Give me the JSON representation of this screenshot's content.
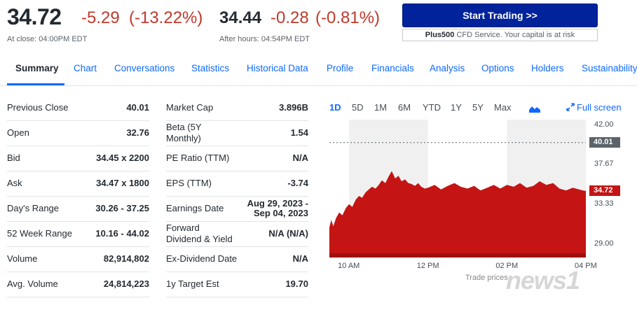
{
  "header": {
    "price": "34.72",
    "change": "-5.29",
    "change_pct": "(-13.22%)",
    "close_label": "At close: 04:00PM EDT",
    "ah_price": "34.44",
    "ah_change": "-0.28",
    "ah_change_pct": "(-0.81%)",
    "ah_label": "After hours: 04:54PM EDT",
    "cta_label": "Start Trading >>",
    "cfd_brand": "Plus500",
    "cfd_text": " CFD Service. Your capital is at risk"
  },
  "tabs": [
    "Summary",
    "Chart",
    "Conversations",
    "Statistics",
    "Historical Data",
    "Profile",
    "Financials",
    "Analysis",
    "Options",
    "Holders",
    "Sustainability"
  ],
  "left_stats": [
    {
      "label": "Previous Close",
      "value": "40.01"
    },
    {
      "label": "Open",
      "value": "32.76"
    },
    {
      "label": "Bid",
      "value": "34.45 x 2200"
    },
    {
      "label": "Ask",
      "value": "34.47 x 1800"
    },
    {
      "label": "Day's Range",
      "value": "30.26 - 37.25"
    },
    {
      "label": "52 Week Range",
      "value": "10.16 - 44.02"
    },
    {
      "label": "Volume",
      "value": "82,914,802"
    },
    {
      "label": "Avg. Volume",
      "value": "24,814,223"
    }
  ],
  "right_stats": [
    {
      "label": "Market Cap",
      "value": "3.896B"
    },
    {
      "label": "Beta (5Y\nMonthly)",
      "value": "1.54"
    },
    {
      "label": "PE Ratio (TTM)",
      "value": "N/A"
    },
    {
      "label": "EPS (TTM)",
      "value": "-3.74"
    },
    {
      "label": "Earnings Date",
      "value": "Aug 29, 2023 -\nSep 04, 2023"
    },
    {
      "label": "Forward\nDividend & Yield",
      "value": "N/A (N/A)"
    },
    {
      "label": "Ex-Dividend Date",
      "value": "N/A"
    },
    {
      "label": "1y Target Est",
      "value": "19.70"
    }
  ],
  "chart": {
    "ranges": [
      "1D",
      "5D",
      "1M",
      "6M",
      "YTD",
      "1Y",
      "5Y",
      "Max"
    ],
    "active_range": "1D",
    "fullscreen_label": "Full screen",
    "icon": "mountain-chart-icon",
    "colors": {
      "area": "#c41414",
      "prev_close_tag": "#5b636a",
      "price_tag": "#c41414",
      "band": "#f0f0f0"
    },
    "footer": "Trade prices",
    "watermark": "news1"
  },
  "chart_data": {
    "type": "area",
    "ylim": [
      27.5,
      42.5
    ],
    "yticks": [
      "42.00",
      "37.67",
      "33.33",
      "29.00"
    ],
    "ytick_values": [
      42.0,
      37.67,
      33.33,
      29.0
    ],
    "xticks": [
      "10 AM",
      "12 PM",
      "02 PM",
      "04 PM"
    ],
    "xtick_values": [
      10.0,
      12.0,
      14.0,
      16.0
    ],
    "x_range": [
      9.5,
      16.0
    ],
    "prev_close": 40.01,
    "prev_close_label": "40.01",
    "last_label": "34.72",
    "last": 34.72,
    "x": [
      9.5,
      9.55,
      9.6,
      9.67,
      9.75,
      9.83,
      9.92,
      10.0,
      10.08,
      10.17,
      10.25,
      10.33,
      10.42,
      10.5,
      10.58,
      10.67,
      10.75,
      10.83,
      10.92,
      11.0,
      11.08,
      11.17,
      11.25,
      11.33,
      11.42,
      11.5,
      11.58,
      11.67,
      11.75,
      11.83,
      11.92,
      12.0,
      12.17,
      12.33,
      12.5,
      12.67,
      12.83,
      13.0,
      13.17,
      13.33,
      13.5,
      13.67,
      13.83,
      14.0,
      14.17,
      14.33,
      14.5,
      14.67,
      14.83,
      15.0,
      15.17,
      15.33,
      15.5,
      15.67,
      15.83,
      16.0
    ],
    "y": [
      30.8,
      31.6,
      30.9,
      31.8,
      32.4,
      32.1,
      32.9,
      33.3,
      33.0,
      33.8,
      34.2,
      34.0,
      34.6,
      34.9,
      35.2,
      35.0,
      35.4,
      35.9,
      35.6,
      36.3,
      36.9,
      36.1,
      36.4,
      35.8,
      36.0,
      35.6,
      35.5,
      35.3,
      35.6,
      35.2,
      35.0,
      35.1,
      35.4,
      34.9,
      35.3,
      35.6,
      35.2,
      35.0,
      35.3,
      34.8,
      35.1,
      35.4,
      35.0,
      35.4,
      35.2,
      35.6,
      35.1,
      35.3,
      35.8,
      35.4,
      35.6,
      35.0,
      34.8,
      35.1,
      34.9,
      34.72
    ]
  }
}
